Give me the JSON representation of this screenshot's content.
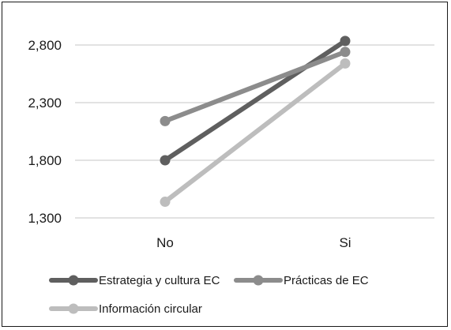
{
  "chart_data": {
    "type": "line",
    "categories": [
      "No",
      "Si"
    ],
    "series": [
      {
        "name": "Estrategia y cultura EC",
        "values": [
          1.8,
          2.835
        ],
        "color": "#5f5f5f"
      },
      {
        "name": "Prácticas de EC",
        "values": [
          2.14,
          2.74
        ],
        "color": "#8c8c8c"
      },
      {
        "name": "Información circular",
        "values": [
          1.44,
          2.64
        ],
        "color": "#bdbdbd"
      }
    ],
    "y_ticks": [
      "1,300",
      "1,800",
      "2,300",
      "2,800"
    ],
    "y_tick_values": [
      1.3,
      1.8,
      2.3,
      2.8
    ],
    "ylim": [
      1.3,
      2.8
    ],
    "grid": true,
    "legend_position": "bottom"
  }
}
